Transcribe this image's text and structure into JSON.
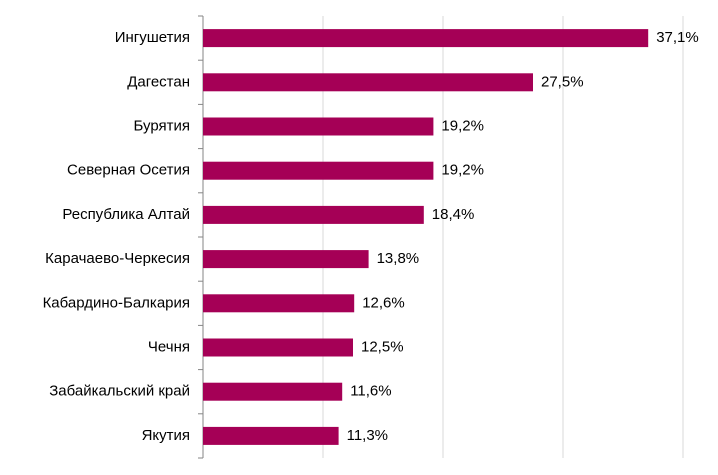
{
  "chart_data": {
    "type": "barh",
    "categories": [
      "Ингушетия",
      "Дагестан",
      "Бурятия",
      "Северная Осетия",
      "Республика Алтай",
      "Карачаево-Черкесия",
      "Кабардино-Балкария",
      "Чечня",
      "Забайкальский край",
      "Якутия"
    ],
    "values": [
      37.1,
      27.5,
      19.2,
      19.2,
      18.4,
      13.8,
      12.6,
      12.5,
      11.6,
      11.3
    ],
    "value_labels": [
      "37,1%",
      "27,5%",
      "19,2%",
      "19,2%",
      "18,4%",
      "13,8%",
      "12,6%",
      "12,5%",
      "11,6%",
      "11,3%"
    ],
    "color": "#a50056",
    "xlim": [
      0,
      40
    ],
    "xticks": [
      0,
      10,
      20,
      30,
      40
    ],
    "grid": true
  }
}
